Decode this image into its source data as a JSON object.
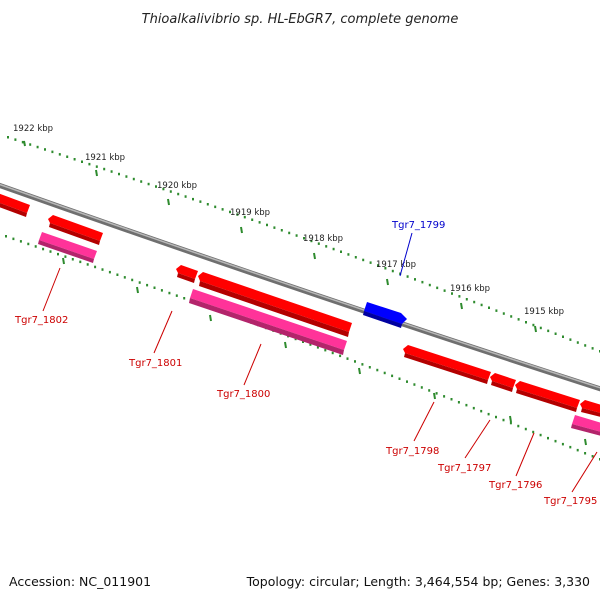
{
  "title": "Thioalkalivibrio sp. HL-EbGR7, complete genome",
  "footer": {
    "accession": "Accession: NC_011901",
    "summary": "Topology: circular; Length: 3,464,554 bp; Genes: 3,330"
  },
  "colors": {
    "backbone": "#8a8a8a",
    "tick": "#2e8b2e",
    "gene_red": "#ff0000",
    "gene_red_dark": "#b30000",
    "gene_pink": "#ff3399",
    "gene_pink_dark": "#b3246b",
    "gene_blue": "#0000ff",
    "gene_blue_dark": "#0000a0",
    "label_red": "#cc0000",
    "label_blue": "#0000cc"
  },
  "kbp_labels": [
    "1922 kbp",
    "1921 kbp",
    "1920 kbp",
    "1919 kbp",
    "1918 kbp",
    "1917 kbp",
    "1916 kbp",
    "1915 kbp"
  ],
  "gene_labels": {
    "g1802": "Tgr7_1802",
    "g1801": "Tgr7_1801",
    "g1800": "Tgr7_1800",
    "g1799": "Tgr7_1799",
    "g1798": "Tgr7_1798",
    "g1797": "Tgr7_1797",
    "g1796": "Tgr7_1796",
    "g1795": "Tgr7_1795"
  }
}
